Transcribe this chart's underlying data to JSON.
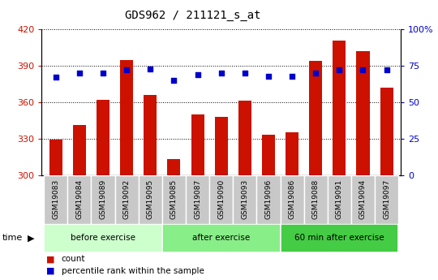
{
  "title": "GDS962 / 211121_s_at",
  "categories": [
    "GSM19083",
    "GSM19084",
    "GSM19089",
    "GSM19092",
    "GSM19095",
    "GSM19085",
    "GSM19087",
    "GSM19090",
    "GSM19093",
    "GSM19096",
    "GSM19086",
    "GSM19088",
    "GSM19091",
    "GSM19094",
    "GSM19097"
  ],
  "counts": [
    329,
    341,
    362,
    395,
    366,
    313,
    350,
    348,
    361,
    333,
    335,
    394,
    411,
    402,
    372
  ],
  "percentile_ranks": [
    67,
    70,
    70,
    72,
    73,
    65,
    69,
    70,
    70,
    68,
    68,
    70,
    72,
    72,
    72
  ],
  "ylim_left": [
    300,
    420
  ],
  "ylim_right": [
    0,
    100
  ],
  "yticks_left": [
    300,
    330,
    360,
    390,
    420
  ],
  "yticks_right": [
    0,
    25,
    50,
    75,
    100
  ],
  "bar_color": "#cc1100",
  "dot_color": "#0000cc",
  "grid_color": "#000000",
  "background_color": "#ffffff",
  "cat_cell_color": "#c8c8c8",
  "groups": [
    {
      "label": "before exercise",
      "start": 0,
      "end": 5,
      "color": "#ccffcc"
    },
    {
      "label": "after exercise",
      "start": 5,
      "end": 10,
      "color": "#88ee88"
    },
    {
      "label": "60 min after exercise",
      "start": 10,
      "end": 15,
      "color": "#44cc44"
    }
  ],
  "legend_count_label": "count",
  "legend_pct_label": "percentile rank within the sample",
  "time_label": "time",
  "bar_width": 0.55
}
